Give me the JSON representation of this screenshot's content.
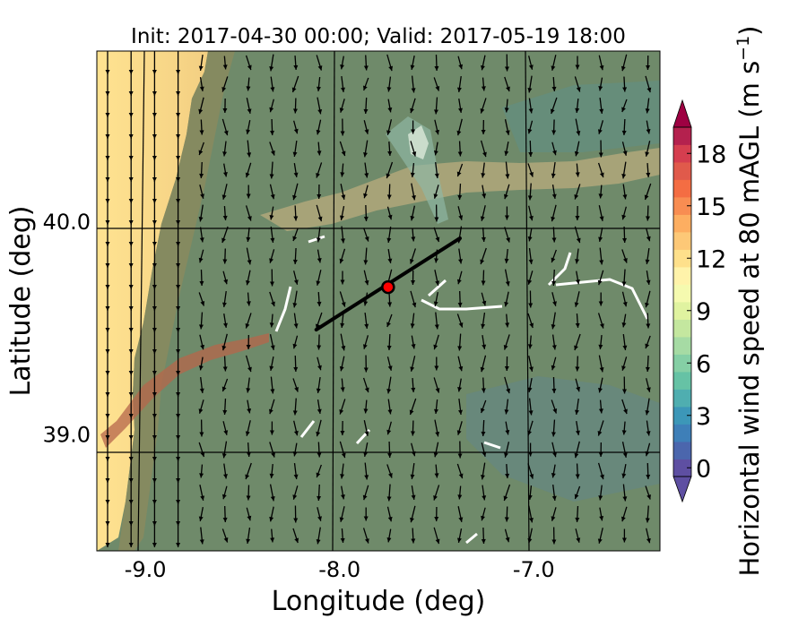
{
  "chart_data": {
    "type": "heatmap",
    "title": "Init: 2017-04-30 00:00; Valid: 2017-05-19 18:00",
    "xlabel": "Longitude (deg)",
    "ylabel": "Latitude (deg)",
    "xlim": [
      -9.25,
      -6.35
    ],
    "ylim": [
      38.45,
      40.8
    ],
    "xticks": [
      {
        "value": -9.0,
        "label": "-9.0"
      },
      {
        "value": -8.0,
        "label": "-8.0"
      },
      {
        "value": -7.0,
        "label": "-7.0"
      }
    ],
    "yticks": [
      {
        "value": 40.0,
        "label": "40.0"
      },
      {
        "value": 39.0,
        "label": "39.0"
      }
    ],
    "grid": true,
    "colorbar": {
      "label": "Horizontal wind speed at 80 mAGL (m s",
      "label_sup": "−1",
      "label_end": ")",
      "min": 0,
      "max": 20,
      "step": 1,
      "extend": "both",
      "ticks": [
        {
          "value": 0,
          "label": "0"
        },
        {
          "value": 3,
          "label": "3"
        },
        {
          "value": 6,
          "label": "6"
        },
        {
          "value": 9,
          "label": "9"
        },
        {
          "value": 12,
          "label": "12"
        },
        {
          "value": 15,
          "label": "15"
        },
        {
          "value": 18,
          "label": "18"
        }
      ],
      "colors": [
        "#5e4fa2",
        "#4b66ad",
        "#3e7fb8",
        "#3c97b8",
        "#4faeb0",
        "#66c2a5",
        "#85cfa5",
        "#a6dba4",
        "#c4e79f",
        "#e0f3a0",
        "#f5faaf",
        "#fff3aa",
        "#fee08b",
        "#fdc877",
        "#fdae61",
        "#f88d52",
        "#f46d43",
        "#e05a4b",
        "#d53e4f",
        "#b4214e"
      ],
      "over_color": "#9e0142",
      "under_color": "#5e4fa2"
    },
    "transect": {
      "start": [
        -8.12,
        39.49
      ],
      "end": [
        -7.38,
        39.92
      ],
      "color": "#000000"
    },
    "marker": {
      "lon": -7.75,
      "lat": 39.69,
      "color": "#ff0000"
    },
    "wind_field": {
      "dominant_direction": "from north (southward flow)"
    }
  }
}
